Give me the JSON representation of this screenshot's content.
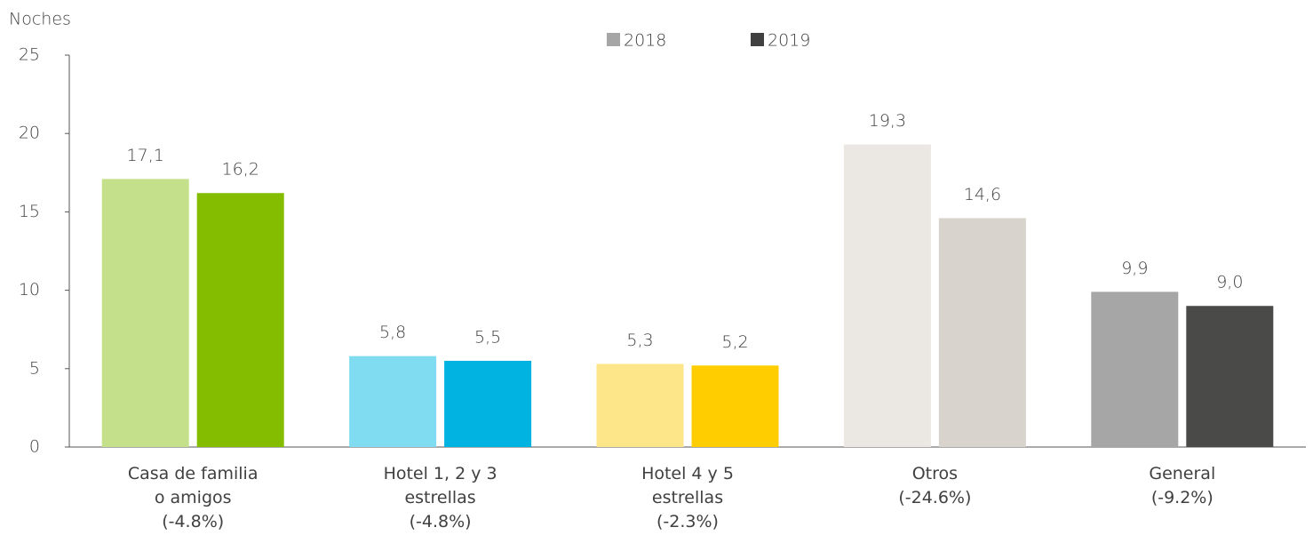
{
  "chart_data": {
    "type": "bar",
    "y_label": "Noches",
    "categories": [
      "Casa de familia\no amigos\n(-4.8%)",
      "Hotel 1, 2 y 3\nestrellas\n(-4.8%)",
      "Hotel 4 y 5\nestrellas\n(-2.3%)",
      "Otros\n(-24.6%)",
      "General\n(-9.2%)"
    ],
    "series": [
      {
        "name": "2018",
        "color": "#a6a6a6",
        "values": [
          17.1,
          5.8,
          5.3,
          19.3,
          9.9
        ],
        "value_labels": [
          "17,1",
          "5,8",
          "5,3",
          "19,3",
          "9,9"
        ],
        "colors": [
          "#c5e08a",
          "#80dcf1",
          "#fde58a",
          "#ebe7e3",
          "#a6a6a6"
        ]
      },
      {
        "name": "2019",
        "color": "#404040",
        "values": [
          16.2,
          5.5,
          5.2,
          14.6,
          9.0
        ],
        "value_labels": [
          "16,2",
          "5,5",
          "5,2",
          "14,6",
          "9,0"
        ],
        "colors": [
          "#84bd00",
          "#00b3e0",
          "#ffcd00",
          "#d8d3cd",
          "#4a4a48"
        ]
      }
    ],
    "ylim": [
      0,
      25
    ],
    "yticks": [
      0,
      5,
      10,
      15,
      20,
      25
    ],
    "grid": false
  }
}
